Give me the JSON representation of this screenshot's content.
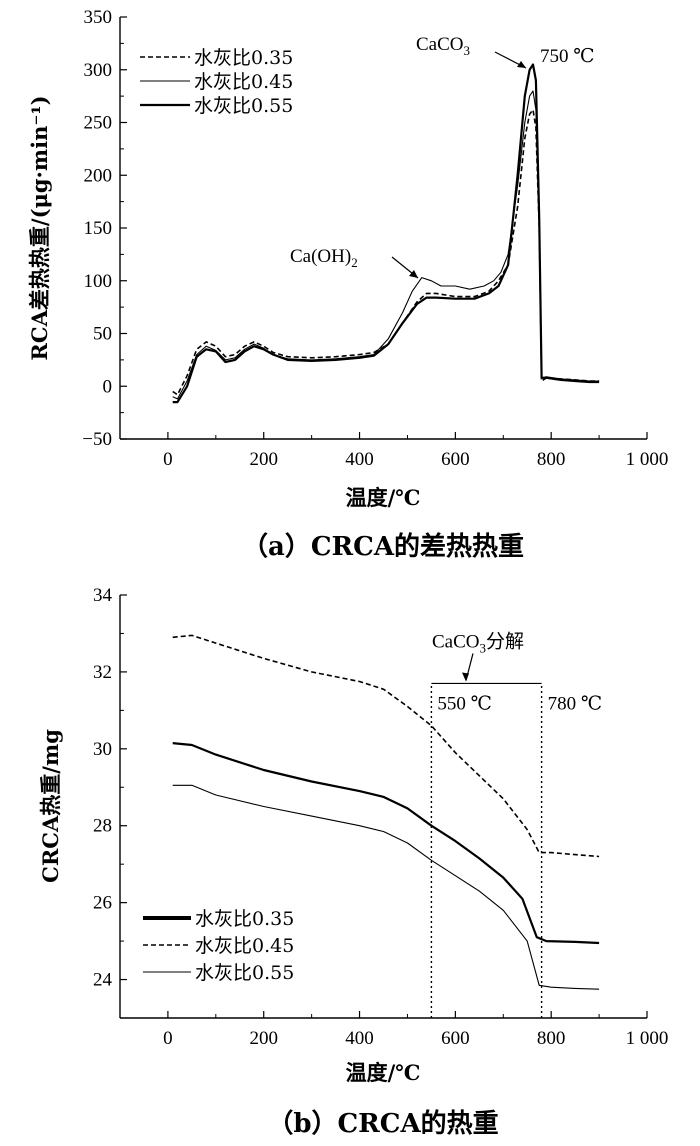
{
  "chart_data": [
    {
      "type": "line",
      "caption": "（a）CRCA的差热热重",
      "xlabel": "温度/℃",
      "ylabel": "RCA差热热重/(μg·min⁻¹)",
      "xlim": [
        -100,
        1000
      ],
      "ylim": [
        -50,
        350
      ],
      "xticks": [
        "0",
        "200",
        "400",
        "600",
        "800",
        "1 000"
      ],
      "xtick_values": [
        0,
        200,
        400,
        600,
        800,
        1000
      ],
      "yticks": [
        "−50",
        "0",
        "50",
        "100",
        "150",
        "200",
        "250",
        "300",
        "350"
      ],
      "ytick_values": [
        -50,
        0,
        50,
        100,
        150,
        200,
        250,
        300,
        350
      ],
      "legend_position": "top-left",
      "series": [
        {
          "name": "水灰比0.35",
          "style": "dashed",
          "points": [
            [
              10,
              -5
            ],
            [
              20,
              -8
            ],
            [
              40,
              10
            ],
            [
              60,
              35
            ],
            [
              80,
              42
            ],
            [
              100,
              38
            ],
            [
              120,
              28
            ],
            [
              140,
              30
            ],
            [
              160,
              38
            ],
            [
              180,
              42
            ],
            [
              200,
              38
            ],
            [
              220,
              32
            ],
            [
              250,
              28
            ],
            [
              300,
              27
            ],
            [
              350,
              28
            ],
            [
              400,
              30
            ],
            [
              430,
              32
            ],
            [
              460,
              40
            ],
            [
              490,
              60
            ],
            [
              520,
              80
            ],
            [
              540,
              88
            ],
            [
              560,
              88
            ],
            [
              600,
              85
            ],
            [
              640,
              85
            ],
            [
              670,
              90
            ],
            [
              690,
              100
            ],
            [
              710,
              115
            ],
            [
              730,
              170
            ],
            [
              745,
              235
            ],
            [
              755,
              258
            ],
            [
              762,
              262
            ],
            [
              768,
              245
            ],
            [
              775,
              150
            ],
            [
              780,
              5
            ],
            [
              790,
              8
            ],
            [
              820,
              7
            ],
            [
              850,
              6
            ],
            [
              880,
              5
            ],
            [
              900,
              5
            ]
          ]
        },
        {
          "name": "水灰比0.45",
          "style": "thin",
          "points": [
            [
              10,
              -10
            ],
            [
              20,
              -12
            ],
            [
              40,
              5
            ],
            [
              60,
              30
            ],
            [
              80,
              38
            ],
            [
              100,
              34
            ],
            [
              120,
              25
            ],
            [
              140,
              27
            ],
            [
              160,
              35
            ],
            [
              180,
              40
            ],
            [
              200,
              36
            ],
            [
              220,
              30
            ],
            [
              250,
              26
            ],
            [
              300,
              25
            ],
            [
              350,
              26
            ],
            [
              400,
              28
            ],
            [
              430,
              30
            ],
            [
              460,
              45
            ],
            [
              490,
              70
            ],
            [
              510,
              90
            ],
            [
              530,
              103
            ],
            [
              550,
              100
            ],
            [
              570,
              95
            ],
            [
              600,
              95
            ],
            [
              630,
              92
            ],
            [
              660,
              95
            ],
            [
              680,
              100
            ],
            [
              695,
              108
            ],
            [
              710,
              125
            ],
            [
              730,
              190
            ],
            [
              745,
              250
            ],
            [
              755,
              275
            ],
            [
              762,
              280
            ],
            [
              768,
              262
            ],
            [
              775,
              150
            ],
            [
              780,
              8
            ],
            [
              790,
              9
            ],
            [
              820,
              7
            ],
            [
              850,
              6
            ],
            [
              880,
              5
            ],
            [
              900,
              5
            ]
          ]
        },
        {
          "name": "水灰比0.55",
          "style": "thick",
          "points": [
            [
              10,
              -15
            ],
            [
              20,
              -15
            ],
            [
              40,
              0
            ],
            [
              60,
              28
            ],
            [
              80,
              35
            ],
            [
              100,
              33
            ],
            [
              120,
              23
            ],
            [
              140,
              25
            ],
            [
              160,
              33
            ],
            [
              180,
              38
            ],
            [
              200,
              35
            ],
            [
              220,
              30
            ],
            [
              250,
              25
            ],
            [
              300,
              24
            ],
            [
              350,
              25
            ],
            [
              400,
              27
            ],
            [
              430,
              29
            ],
            [
              460,
              40
            ],
            [
              490,
              60
            ],
            [
              520,
              78
            ],
            [
              540,
              84
            ],
            [
              560,
              84
            ],
            [
              600,
              83
            ],
            [
              640,
              83
            ],
            [
              670,
              88
            ],
            [
              690,
              95
            ],
            [
              710,
              115
            ],
            [
              730,
              200
            ],
            [
              745,
              275
            ],
            [
              755,
              300
            ],
            [
              762,
              305
            ],
            [
              768,
              290
            ],
            [
              775,
              160
            ],
            [
              780,
              8
            ],
            [
              790,
              8
            ],
            [
              820,
              6
            ],
            [
              850,
              5
            ],
            [
              880,
              4
            ],
            [
              900,
              4
            ]
          ]
        }
      ],
      "annotations": {
        "caco3": "CaCO",
        "caco3_sub": "3",
        "peak_temp": "750 ℃",
        "caoh": "Ca(OH)",
        "caoh_sub": "2"
      }
    },
    {
      "type": "line",
      "caption": "（b）CRCA的热重",
      "xlabel": "温度/℃",
      "ylabel": "CRCA热重/mg",
      "xlim": [
        -100,
        1000
      ],
      "ylim": [
        23,
        34
      ],
      "xticks": [
        "0",
        "200",
        "400",
        "600",
        "800",
        "1 000"
      ],
      "xtick_values": [
        0,
        200,
        400,
        600,
        800,
        1000
      ],
      "yticks": [
        "24",
        "26",
        "28",
        "30",
        "32",
        "34"
      ],
      "ytick_values": [
        24,
        26,
        28,
        30,
        32,
        34
      ],
      "legend_position": "bottom-left",
      "series": [
        {
          "name": "水灰比0.35",
          "style": "thick",
          "points": [
            [
              10,
              30.15
            ],
            [
              50,
              30.1
            ],
            [
              100,
              29.85
            ],
            [
              200,
              29.45
            ],
            [
              300,
              29.15
            ],
            [
              400,
              28.9
            ],
            [
              450,
              28.75
            ],
            [
              500,
              28.45
            ],
            [
              550,
              28.0
            ],
            [
              600,
              27.6
            ],
            [
              650,
              27.15
            ],
            [
              700,
              26.65
            ],
            [
              740,
              26.1
            ],
            [
              770,
              25.1
            ],
            [
              790,
              25.0
            ],
            [
              850,
              24.98
            ],
            [
              900,
              24.95
            ]
          ]
        },
        {
          "name": "水灰比0.45",
          "style": "dashed",
          "points": [
            [
              10,
              32.9
            ],
            [
              50,
              32.95
            ],
            [
              100,
              32.75
            ],
            [
              200,
              32.35
            ],
            [
              300,
              32.0
            ],
            [
              400,
              31.75
            ],
            [
              450,
              31.55
            ],
            [
              500,
              31.1
            ],
            [
              550,
              30.6
            ],
            [
              600,
              29.9
            ],
            [
              650,
              29.3
            ],
            [
              700,
              28.7
            ],
            [
              750,
              27.9
            ],
            [
              775,
              27.3
            ],
            [
              800,
              27.3
            ],
            [
              850,
              27.25
            ],
            [
              900,
              27.2
            ]
          ]
        },
        {
          "name": "水灰比0.55",
          "style": "thin",
          "points": [
            [
              10,
              29.05
            ],
            [
              50,
              29.05
            ],
            [
              100,
              28.8
            ],
            [
              200,
              28.5
            ],
            [
              300,
              28.25
            ],
            [
              400,
              28.0
            ],
            [
              450,
              27.85
            ],
            [
              500,
              27.55
            ],
            [
              550,
              27.1
            ],
            [
              600,
              26.7
            ],
            [
              650,
              26.3
            ],
            [
              700,
              25.8
            ],
            [
              750,
              25.0
            ],
            [
              775,
              23.85
            ],
            [
              800,
              23.8
            ],
            [
              850,
              23.77
            ],
            [
              900,
              23.75
            ]
          ]
        }
      ],
      "annotations": {
        "decomp_pre": "CaCO",
        "decomp_sub": "3",
        "decomp_post": "分解",
        "t1": "550 ℃",
        "t2": "780 ℃",
        "t1_value": 550,
        "t2_value": 780,
        "bracket_y": 31.7
      }
    }
  ]
}
